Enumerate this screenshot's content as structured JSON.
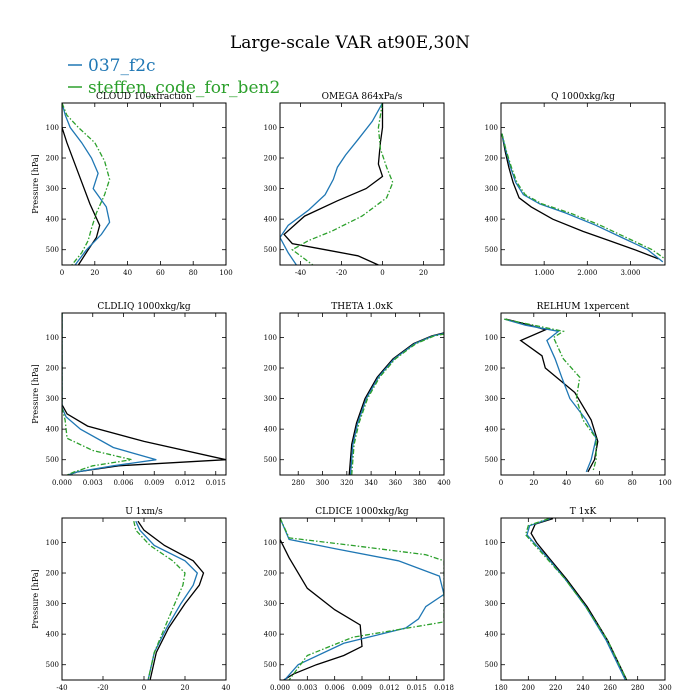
{
  "title": "Large-scale VAR at90E,30N",
  "legend": [
    {
      "name": "037_f2c",
      "color": "#1f77b4"
    },
    {
      "name": "steffen_code_for_ben2",
      "color": "#2ca02c"
    }
  ],
  "chart_data": [
    {
      "type": "line",
      "title": "CLOUD  100xfraction",
      "ylabel": "Pressure [hPa]",
      "xlim": [
        0,
        100
      ],
      "ylim": [
        20,
        550
      ],
      "xticks": [
        0,
        20,
        40,
        60,
        80,
        100
      ],
      "xticklabels": [
        "0",
        "20",
        "40",
        "60",
        "80",
        "100"
      ],
      "yticks": [
        100,
        200,
        300,
        400,
        500
      ],
      "yticklabels": [
        "100",
        "200",
        "300",
        "400",
        "500"
      ],
      "series": [
        {
          "color": "#000000",
          "style": "solid",
          "x": [
            0,
            0,
            3,
            10,
            17,
            23,
            21,
            16,
            10
          ],
          "y": [
            20,
            100,
            150,
            250,
            350,
            420,
            460,
            500,
            550
          ]
        },
        {
          "color": "#1f77b4",
          "style": "solid",
          "x": [
            0,
            2,
            5,
            12,
            18,
            22,
            19,
            27,
            29,
            24,
            15,
            8
          ],
          "y": [
            20,
            60,
            100,
            150,
            200,
            250,
            300,
            360,
            410,
            450,
            500,
            550
          ]
        },
        {
          "color": "#2ca02c",
          "style": "dashdot",
          "x": [
            0,
            3,
            10,
            20,
            26,
            29,
            26,
            21,
            18,
            16,
            12,
            6
          ],
          "y": [
            20,
            60,
            100,
            150,
            210,
            270,
            320,
            380,
            430,
            470,
            510,
            550
          ]
        }
      ]
    },
    {
      "type": "line",
      "title": "OMEGA  864xPa/s",
      "ylabel": "",
      "xlim": [
        -50,
        30
      ],
      "ylim": [
        20,
        550
      ],
      "xticks": [
        -40,
        -20,
        0,
        20
      ],
      "xticklabels": [
        "-40",
        "-20",
        "0",
        "20"
      ],
      "yticks": [
        100,
        200,
        300,
        400,
        500
      ],
      "yticklabels": [
        "100",
        "200",
        "300",
        "400",
        "500"
      ],
      "series": [
        {
          "color": "#000000",
          "style": "solid",
          "x": [
            0,
            0,
            -1,
            -2,
            0,
            -8,
            -22,
            -38,
            -48,
            -44,
            -28,
            -12,
            -2
          ],
          "y": [
            20,
            100,
            150,
            220,
            260,
            300,
            340,
            390,
            450,
            480,
            500,
            520,
            550
          ]
        },
        {
          "color": "#1f77b4",
          "style": "solid",
          "x": [
            0,
            -5,
            -12,
            -18,
            -22,
            -24,
            -28,
            -36,
            -46,
            -50,
            -46,
            -42
          ],
          "y": [
            20,
            80,
            140,
            190,
            230,
            270,
            320,
            370,
            420,
            460,
            510,
            550
          ]
        },
        {
          "color": "#2ca02c",
          "style": "dashdot",
          "x": [
            0,
            -2,
            -1,
            2,
            5,
            2,
            -10,
            -25,
            -36,
            -44,
            -40,
            -34
          ],
          "y": [
            20,
            100,
            170,
            230,
            280,
            330,
            390,
            440,
            470,
            500,
            520,
            550
          ]
        }
      ]
    },
    {
      "type": "line",
      "title": "Q  1000xkg/kg",
      "ylabel": "",
      "xlim": [
        0,
        3800
      ],
      "ylim": [
        20,
        550
      ],
      "xticks": [
        1000,
        2000,
        3000
      ],
      "xticklabels": [
        "1.000",
        "2.000",
        "3.000"
      ],
      "yticks": [
        100,
        200,
        300,
        400,
        500
      ],
      "yticklabels": [
        "100",
        "200",
        "300",
        "400",
        "500"
      ],
      "series": [
        {
          "color": "#000000",
          "style": "solid",
          "x": [
            20,
            100,
            180,
            280,
            420,
            700,
            1200,
            1900,
            2500,
            3100,
            3650
          ],
          "y": [
            120,
            180,
            230,
            280,
            330,
            360,
            400,
            440,
            470,
            500,
            530
          ]
        },
        {
          "color": "#1f77b4",
          "style": "solid",
          "x": [
            20,
            120,
            220,
            340,
            520,
            900,
            1500,
            2200,
            2800,
            3400,
            3750
          ],
          "y": [
            120,
            180,
            230,
            280,
            320,
            350,
            380,
            420,
            460,
            500,
            540
          ]
        },
        {
          "color": "#2ca02c",
          "style": "dashdot",
          "x": [
            20,
            130,
            240,
            370,
            560,
            950,
            1600,
            2300,
            2900,
            3500,
            3800
          ],
          "y": [
            120,
            180,
            230,
            280,
            320,
            350,
            380,
            420,
            460,
            500,
            530
          ]
        }
      ]
    },
    {
      "type": "line",
      "title": "CLDLIQ  1000xkg/kg",
      "ylabel": "Pressure [hPa]",
      "xlim": [
        0,
        0.016
      ],
      "ylim": [
        20,
        550
      ],
      "xticks": [
        0,
        0.003,
        0.006,
        0.009,
        0.012,
        0.015
      ],
      "xticklabels": [
        "0.000",
        "0.003",
        "0.006",
        "0.009",
        "0.012",
        "0.015"
      ],
      "yticks": [
        100,
        200,
        300,
        400,
        500
      ],
      "yticklabels": [
        "100",
        "200",
        "300",
        "400",
        "500"
      ],
      "series": [
        {
          "color": "#000000",
          "style": "solid",
          "x": [
            0,
            0,
            0.0005,
            0.0025,
            0.008,
            0.016,
            0.0055,
            0.0015,
            0.0006
          ],
          "y": [
            20,
            320,
            350,
            390,
            440,
            500,
            520,
            540,
            550
          ]
        },
        {
          "color": "#1f77b4",
          "style": "solid",
          "x": [
            0,
            0,
            0.0004,
            0.0018,
            0.005,
            0.0092,
            0.005,
            0.0015,
            0.0006
          ],
          "y": [
            20,
            330,
            360,
            400,
            460,
            500,
            520,
            540,
            550
          ]
        },
        {
          "color": "#2ca02c",
          "style": "dashdot",
          "x": [
            0,
            0,
            0.0003,
            0.0005,
            0.003,
            0.0068,
            0.003,
            0.0012,
            0.0005
          ],
          "y": [
            20,
            330,
            370,
            430,
            470,
            500,
            520,
            540,
            550
          ]
        }
      ]
    },
    {
      "type": "line",
      "title": "THETA  1.0xK",
      "ylabel": "",
      "xlim": [
        265,
        400
      ],
      "ylim": [
        20,
        550
      ],
      "xticks": [
        280,
        300,
        320,
        340,
        360,
        380,
        400
      ],
      "xticklabels": [
        "280",
        "300",
        "320",
        "340",
        "360",
        "380",
        "400"
      ],
      "yticks": [
        100,
        200,
        300,
        400,
        500
      ],
      "yticklabels": [
        "100",
        "200",
        "300",
        "400",
        "500"
      ],
      "series": [
        {
          "color": "#000000",
          "style": "solid",
          "x": [
            322,
            324,
            328,
            335,
            345,
            358,
            375,
            390,
            400
          ],
          "y": [
            550,
            450,
            380,
            300,
            230,
            170,
            120,
            95,
            85
          ]
        },
        {
          "color": "#1f77b4",
          "style": "solid",
          "x": [
            323,
            325,
            329,
            336,
            346,
            359,
            376,
            391,
            400
          ],
          "y": [
            550,
            450,
            380,
            300,
            230,
            170,
            120,
            95,
            87
          ]
        },
        {
          "color": "#2ca02c",
          "style": "dashdot",
          "x": [
            324,
            326,
            330,
            337,
            347,
            360,
            377,
            392,
            400
          ],
          "y": [
            550,
            450,
            380,
            300,
            230,
            170,
            120,
            95,
            89
          ]
        }
      ]
    },
    {
      "type": "line",
      "title": "RELHUM  1xpercent",
      "ylabel": "",
      "xlim": [
        0,
        100
      ],
      "ylim": [
        20,
        550
      ],
      "xticks": [
        0,
        20,
        40,
        60,
        80,
        100
      ],
      "xticklabels": [
        "0",
        "20",
        "40",
        "60",
        "80",
        "100"
      ],
      "yticks": [
        100,
        200,
        300,
        400,
        500
      ],
      "yticklabels": [
        "100",
        "200",
        "300",
        "400",
        "500"
      ],
      "series": [
        {
          "color": "#000000",
          "style": "solid",
          "x": [
            3,
            18,
            27,
            12,
            25,
            27,
            45,
            55,
            59,
            57,
            53
          ],
          "y": [
            40,
            60,
            75,
            110,
            160,
            200,
            280,
            370,
            440,
            500,
            540
          ]
        },
        {
          "color": "#1f77b4",
          "style": "solid",
          "x": [
            2,
            15,
            35,
            28,
            33,
            37,
            42,
            52,
            58,
            55,
            52
          ],
          "y": [
            40,
            60,
            80,
            110,
            170,
            230,
            300,
            370,
            430,
            500,
            540
          ]
        },
        {
          "color": "#2ca02c",
          "style": "dashdot",
          "x": [
            2,
            20,
            38,
            32,
            38,
            48,
            46,
            50,
            58,
            58,
            56
          ],
          "y": [
            40,
            60,
            80,
            100,
            170,
            230,
            300,
            370,
            430,
            500,
            540
          ]
        }
      ]
    },
    {
      "type": "line",
      "title": "U  1xm/s",
      "ylabel": "Pressure [hPa]",
      "xlim": [
        -40,
        40
      ],
      "ylim": [
        20,
        550
      ],
      "xticks": [
        -40,
        -20,
        0,
        20,
        40
      ],
      "xticklabels": [
        "-40",
        "-20",
        "0",
        "20",
        "40"
      ],
      "yticks": [
        100,
        200,
        300,
        400,
        500
      ],
      "yticklabels": [
        "100",
        "200",
        "300",
        "400",
        "500"
      ],
      "series": [
        {
          "color": "#000000",
          "style": "solid",
          "x": [
            -3,
            0,
            10,
            24,
            29,
            27,
            20,
            12,
            6,
            3
          ],
          "y": [
            30,
            60,
            110,
            160,
            200,
            240,
            300,
            380,
            460,
            550
          ]
        },
        {
          "color": "#1f77b4",
          "style": "solid",
          "x": [
            -4,
            -2,
            5,
            20,
            26,
            24,
            18,
            11,
            5,
            2
          ],
          "y": [
            30,
            60,
            110,
            160,
            200,
            240,
            300,
            380,
            460,
            550
          ]
        },
        {
          "color": "#2ca02c",
          "style": "dashdot",
          "x": [
            -5,
            -4,
            3,
            14,
            20,
            19,
            15,
            10,
            5,
            2
          ],
          "y": [
            30,
            60,
            110,
            160,
            200,
            240,
            300,
            380,
            460,
            550
          ]
        }
      ]
    },
    {
      "type": "line",
      "title": "CLDICE  1000xkg/kg",
      "ylabel": "",
      "xlim": [
        0,
        0.018
      ],
      "ylim": [
        20,
        550
      ],
      "xticks": [
        0,
        0.003,
        0.006,
        0.009,
        0.012,
        0.015,
        0.018
      ],
      "xticklabels": [
        "0.000",
        "0.003",
        "0.006",
        "0.009",
        "0.012",
        "0.015",
        "0.018"
      ],
      "yticks": [
        100,
        200,
        300,
        400,
        500
      ],
      "yticklabels": [
        "100",
        "200",
        "300",
        "400",
        "500"
      ],
      "series": [
        {
          "color": "#000000",
          "style": "solid",
          "x": [
            0,
            0,
            0.001,
            0.003,
            0.006,
            0.0088,
            0.009,
            0.007,
            0.004,
            0.0015,
            0.0004
          ],
          "y": [
            20,
            90,
            150,
            250,
            320,
            370,
            440,
            470,
            500,
            530,
            550
          ]
        },
        {
          "color": "#1f77b4",
          "style": "solid",
          "x": [
            0,
            0.001,
            0.006,
            0.013,
            0.0175,
            0.018,
            0.016,
            0.0152,
            0.0138,
            0.007,
            0.002,
            0.0005
          ],
          "y": [
            20,
            90,
            120,
            160,
            210,
            270,
            310,
            350,
            380,
            430,
            500,
            550
          ]
        },
        {
          "color": "#2ca02c",
          "style": "dashdot",
          "x": [
            0,
            0.001,
            0.008,
            0.016,
            0.018,
            0.018,
            0.018,
            0.016,
            0.008,
            0.003,
            0.001
          ],
          "y": [
            20,
            85,
            110,
            140,
            160,
            160,
            360,
            370,
            410,
            470,
            550
          ]
        }
      ]
    },
    {
      "type": "line",
      "title": "T  1xK",
      "ylabel": "",
      "xlim": [
        180,
        300
      ],
      "ylim": [
        20,
        550
      ],
      "xticks": [
        180,
        200,
        220,
        240,
        260,
        280,
        300
      ],
      "xticklabels": [
        "180",
        "200",
        "220",
        "240",
        "260",
        "280",
        "300"
      ],
      "yticks": [
        100,
        200,
        300,
        400,
        500
      ],
      "yticklabels": [
        "100",
        "200",
        "300",
        "400",
        "500"
      ],
      "series": [
        {
          "color": "#000000",
          "style": "solid",
          "x": [
            218,
            205,
            202,
            206,
            215,
            228,
            243,
            258,
            272
          ],
          "y": [
            22,
            40,
            70,
            100,
            150,
            220,
            310,
            420,
            550
          ]
        },
        {
          "color": "#1f77b4",
          "style": "solid",
          "x": [
            216,
            201,
            199,
            204,
            214,
            227,
            242,
            257,
            271
          ],
          "y": [
            22,
            45,
            75,
            100,
            150,
            220,
            310,
            420,
            550
          ]
        },
        {
          "color": "#2ca02c",
          "style": "dashdot",
          "x": [
            215,
            200,
            198,
            203,
            213,
            227,
            242,
            258,
            272
          ],
          "y": [
            22,
            45,
            75,
            100,
            150,
            220,
            310,
            420,
            550
          ]
        }
      ]
    }
  ]
}
